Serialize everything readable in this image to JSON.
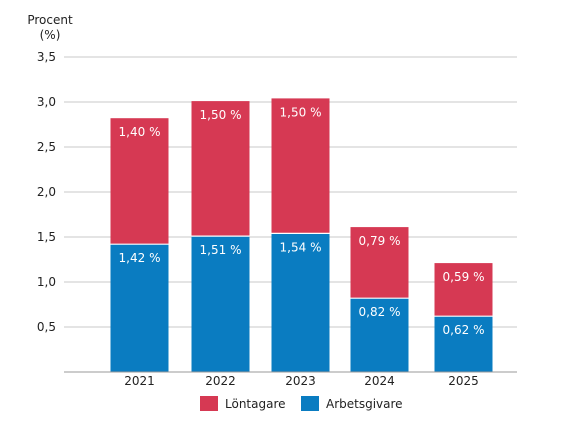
{
  "chart_data": {
    "type": "bar",
    "stacked": true,
    "ylabel_line1": "Procent",
    "ylabel_line2": "(%)",
    "categories": [
      "2021",
      "2022",
      "2023",
      "2024",
      "2025"
    ],
    "y_ticks": [
      {
        "value": 0.5,
        "label": "0,5"
      },
      {
        "value": 1.0,
        "label": "1,0"
      },
      {
        "value": 1.5,
        "label": "1,5"
      },
      {
        "value": 2.0,
        "label": "2,0"
      },
      {
        "value": 2.5,
        "label": "2,5"
      },
      {
        "value": 3.0,
        "label": "3,0"
      },
      {
        "value": 3.5,
        "label": "3,5"
      }
    ],
    "ylim": [
      0,
      3.5
    ],
    "grid": true,
    "legend_position": "bottom-center",
    "series": [
      {
        "name": "Arbetsgivare",
        "color": "#0a7cc1",
        "values": [
          1.42,
          1.51,
          1.54,
          0.82,
          0.62
        ],
        "labels": [
          "1,42 %",
          "1,51 %",
          "1,54 %",
          "0,82 %",
          "0,62 %"
        ]
      },
      {
        "name": "Löntagare",
        "color": "#d63953",
        "values": [
          1.4,
          1.5,
          1.5,
          0.79,
          0.59
        ],
        "labels": [
          "1,40 %",
          "1,50 %",
          "1,50 %",
          "0,79 %",
          "0,59 %"
        ]
      }
    ],
    "legend_order": [
      "Löntagare",
      "Arbetsgivare"
    ]
  }
}
